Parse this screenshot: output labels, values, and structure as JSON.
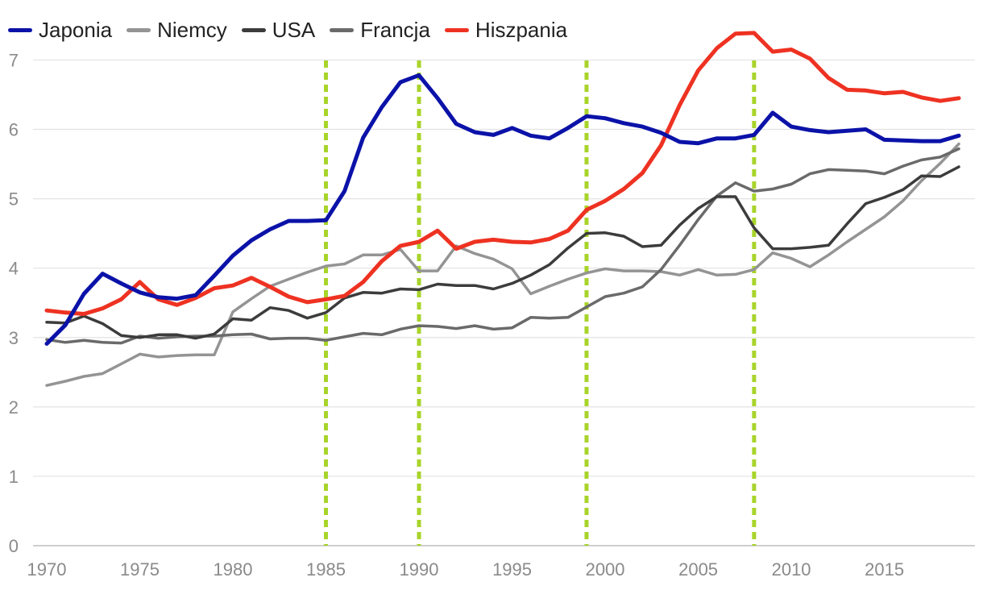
{
  "chart_data": {
    "type": "line",
    "title": "",
    "xlabel": "",
    "ylabel": "",
    "xlim": [
      1970,
      2019
    ],
    "ylim": [
      0,
      7.4
    ],
    "grid": true,
    "legend_position": "top-left",
    "x_ticks": [
      1970,
      1975,
      1980,
      1985,
      1990,
      1995,
      2000,
      2005,
      2010,
      2015
    ],
    "y_ticks": [
      0,
      1,
      2,
      3,
      4,
      5,
      6,
      7
    ],
    "annotation_lines_x": [
      1985,
      1990,
      1999,
      2008
    ],
    "annotation_color": "#a8d42a",
    "x": [
      1970,
      1971,
      1972,
      1973,
      1974,
      1975,
      1976,
      1977,
      1978,
      1979,
      1980,
      1981,
      1982,
      1983,
      1984,
      1985,
      1986,
      1987,
      1988,
      1989,
      1990,
      1991,
      1992,
      1993,
      1994,
      1995,
      1996,
      1997,
      1998,
      1999,
      2000,
      2001,
      2002,
      2003,
      2004,
      2005,
      2006,
      2007,
      2008,
      2009,
      2010,
      2011,
      2012,
      2013,
      2014,
      2015,
      2016,
      2017,
      2018,
      2019
    ],
    "series": [
      {
        "name": "Japonia",
        "color": "#0b12a8",
        "width": 5,
        "values": [
          2.91,
          3.18,
          3.63,
          3.92,
          3.78,
          3.65,
          3.58,
          3.56,
          3.61,
          3.89,
          4.18,
          4.4,
          4.56,
          4.68,
          4.68,
          4.69,
          5.11,
          5.88,
          6.32,
          6.68,
          6.78,
          6.45,
          6.08,
          5.96,
          5.92,
          6.02,
          5.91,
          5.87,
          6.02,
          6.19,
          6.16,
          6.09,
          6.04,
          5.95,
          5.82,
          5.8,
          5.87,
          5.87,
          5.92,
          6.24,
          6.04,
          5.99,
          5.96,
          5.98,
          6.0,
          5.85,
          5.84,
          5.83,
          5.83,
          5.91
        ]
      },
      {
        "name": "Niemcy",
        "color": "#949494",
        "width": 3.5,
        "values": [
          2.31,
          2.37,
          2.44,
          2.48,
          2.62,
          2.76,
          2.72,
          2.74,
          2.75,
          2.75,
          3.37,
          3.56,
          3.74,
          3.84,
          3.94,
          4.03,
          4.06,
          4.19,
          4.19,
          4.27,
          3.96,
          3.96,
          4.32,
          4.21,
          4.13,
          3.99,
          3.63,
          3.74,
          3.84,
          3.93,
          3.99,
          3.96,
          3.96,
          3.95,
          3.9,
          3.98,
          3.9,
          3.91,
          3.98,
          4.22,
          4.14,
          4.02,
          4.19,
          4.38,
          4.56,
          4.74,
          4.97,
          5.26,
          5.51,
          5.79
        ]
      },
      {
        "name": "USA",
        "color": "#3c3c3c",
        "width": 3.5,
        "values": [
          3.22,
          3.21,
          3.31,
          3.2,
          3.03,
          3.0,
          3.04,
          3.04,
          2.99,
          3.05,
          3.27,
          3.25,
          3.43,
          3.39,
          3.28,
          3.36,
          3.57,
          3.65,
          3.64,
          3.7,
          3.69,
          3.77,
          3.75,
          3.75,
          3.7,
          3.78,
          3.9,
          4.05,
          4.29,
          4.5,
          4.51,
          4.46,
          4.31,
          4.33,
          4.62,
          4.86,
          5.03,
          5.03,
          4.58,
          4.28,
          4.28,
          4.3,
          4.33,
          4.64,
          4.93,
          5.02,
          5.13,
          5.33,
          5.32,
          5.46
        ]
      },
      {
        "name": "Francja",
        "color": "#6a6a6a",
        "width": 3.5,
        "values": [
          2.97,
          2.93,
          2.96,
          2.93,
          2.92,
          3.02,
          2.99,
          3.01,
          3.02,
          3.02,
          3.04,
          3.05,
          2.98,
          2.99,
          2.99,
          2.96,
          3.01,
          3.06,
          3.04,
          3.12,
          3.17,
          3.16,
          3.13,
          3.17,
          3.12,
          3.14,
          3.29,
          3.28,
          3.29,
          3.44,
          3.59,
          3.64,
          3.73,
          3.98,
          4.33,
          4.7,
          5.04,
          5.23,
          5.11,
          5.14,
          5.21,
          5.36,
          5.42,
          5.41,
          5.4,
          5.36,
          5.47,
          5.56,
          5.6,
          5.72
        ]
      },
      {
        "name": "Hiszpania",
        "color": "#ee3222",
        "width": 5,
        "values": [
          3.39,
          3.36,
          3.34,
          3.42,
          3.55,
          3.8,
          3.55,
          3.47,
          3.57,
          3.71,
          3.75,
          3.86,
          3.73,
          3.59,
          3.51,
          3.55,
          3.6,
          3.8,
          4.1,
          4.32,
          4.38,
          4.54,
          4.28,
          4.38,
          4.41,
          4.38,
          4.37,
          4.42,
          4.54,
          4.84,
          4.97,
          5.14,
          5.37,
          5.77,
          6.35,
          6.85,
          7.17,
          7.38,
          7.39,
          7.12,
          7.15,
          7.02,
          6.74,
          6.57,
          6.56,
          6.52,
          6.54,
          6.46,
          6.41,
          6.45
        ]
      }
    ]
  }
}
